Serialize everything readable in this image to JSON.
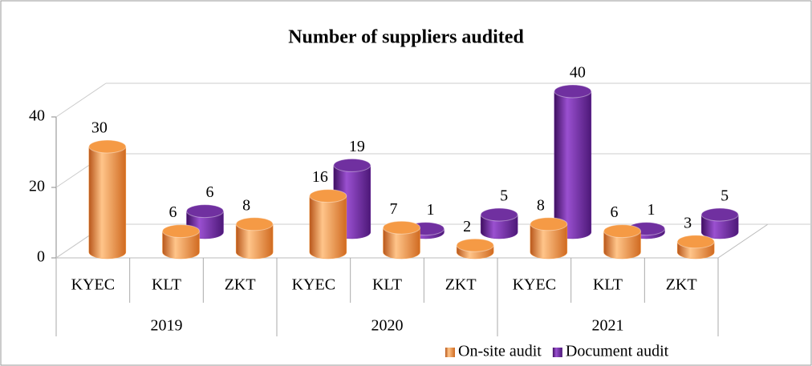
{
  "chart_data": {
    "type": "bar3d",
    "title": "Number of suppliers audited",
    "categories": [
      "KYEC",
      "KLT",
      "ZKT",
      "KYEC",
      "KLT",
      "ZKT",
      "KYEC",
      "KLT",
      "ZKT"
    ],
    "groups": [
      {
        "label": "2019",
        "span": 3
      },
      {
        "label": "2020",
        "span": 3
      },
      {
        "label": "2021",
        "span": 3
      }
    ],
    "series": [
      {
        "name": "On-site audit",
        "color": "#f59a45",
        "values": [
          30,
          6,
          8,
          16,
          7,
          2,
          8,
          6,
          3
        ]
      },
      {
        "name": "Document audit",
        "color": "#7030a0",
        "values": [
          null,
          6,
          null,
          19,
          1,
          5,
          40,
          1,
          5
        ]
      }
    ],
    "ylim": [
      0,
      40
    ],
    "yticks": [
      0,
      20,
      40
    ],
    "grid": true,
    "legend": "bottom-right"
  }
}
